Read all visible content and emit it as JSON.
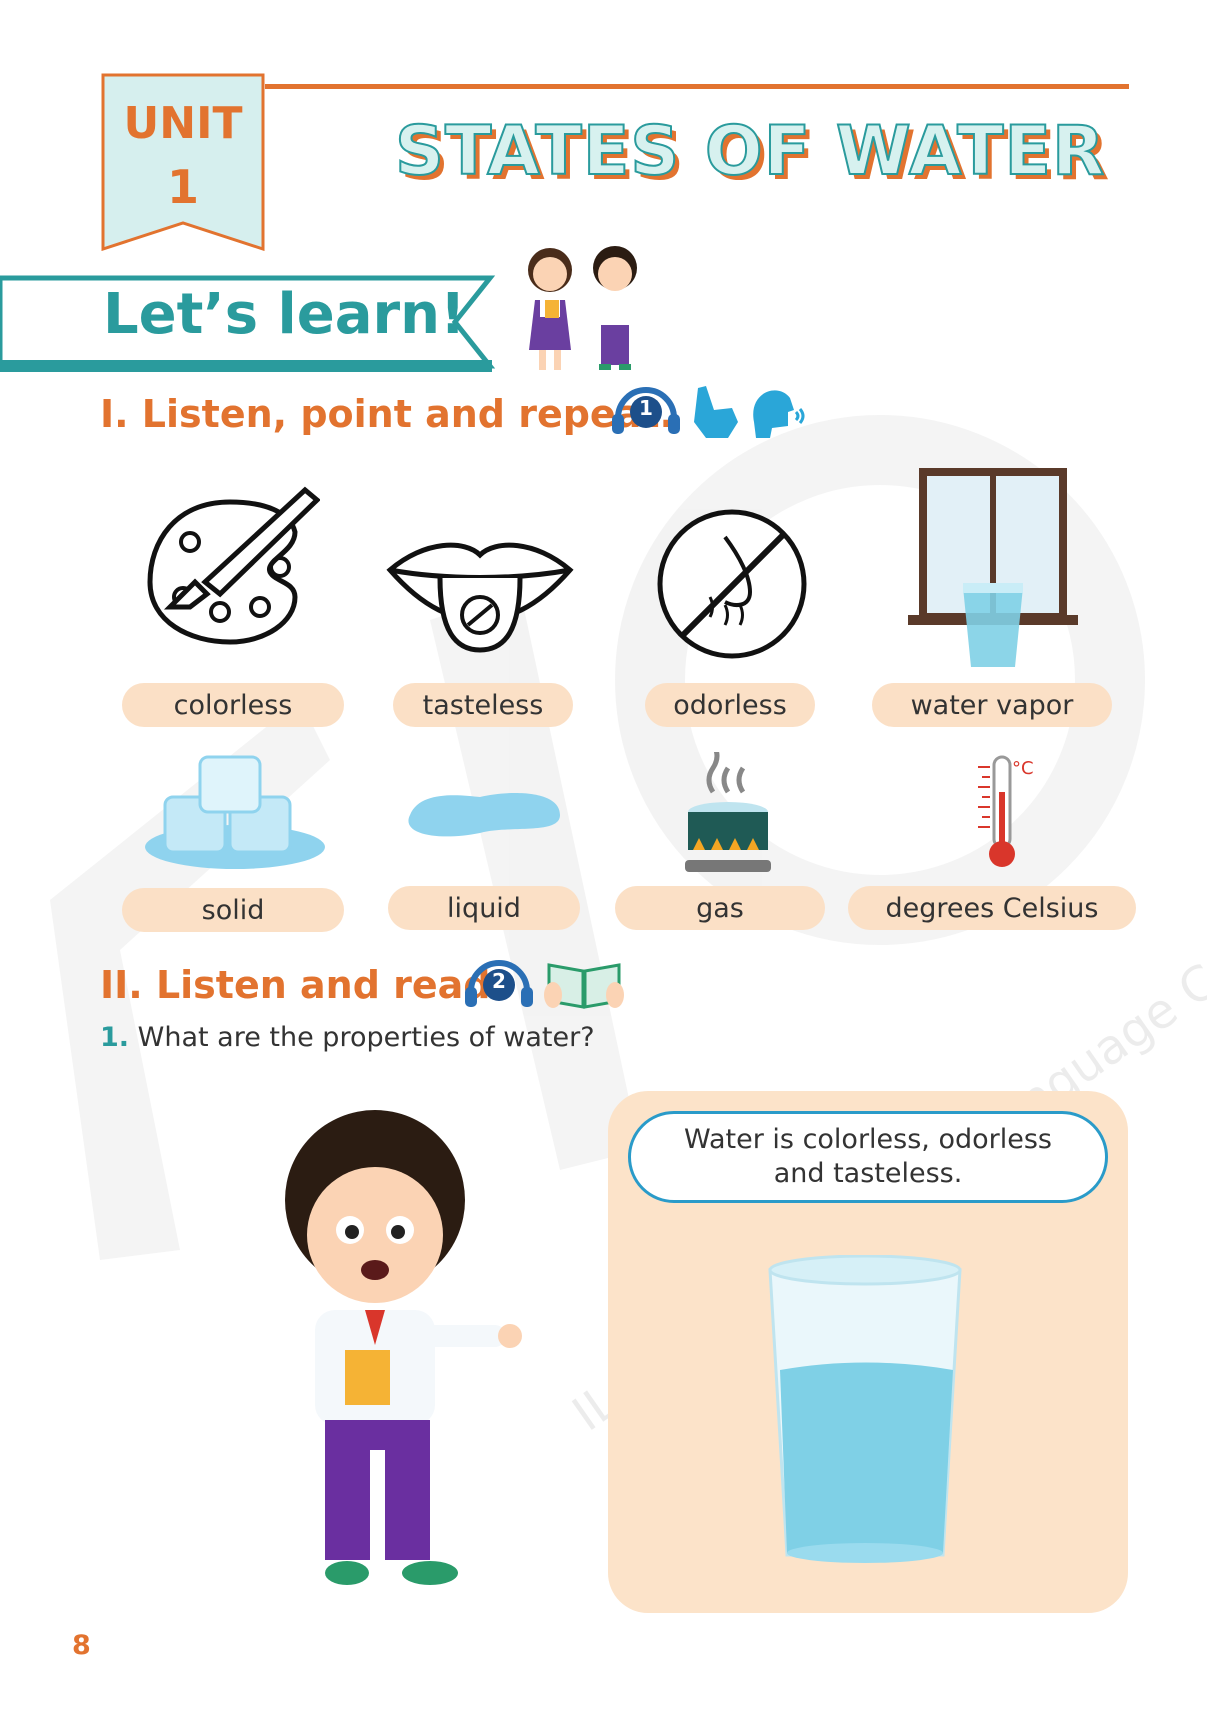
{
  "header": {
    "unit_label": "UNIT",
    "unit_number": "1",
    "title": "STATES OF WATER"
  },
  "banner": {
    "label": "Let’s learn!"
  },
  "section1": {
    "heading": "I. Listen, point and repeat.",
    "track": "1",
    "vocab": [
      {
        "label": "colorless",
        "icon": "palette-icon"
      },
      {
        "label": "tasteless",
        "icon": "tongue-icon"
      },
      {
        "label": "odorless",
        "icon": "no-smell-icon"
      },
      {
        "label": "water vapor",
        "icon": "window-glass-icon"
      },
      {
        "label": "solid",
        "icon": "ice-cubes-icon"
      },
      {
        "label": "liquid",
        "icon": "water-puddle-icon"
      },
      {
        "label": "gas",
        "icon": "boiling-pot-icon"
      },
      {
        "label": "degrees Celsius",
        "icon": "thermometer-icon"
      }
    ],
    "thermo_unit": "°C"
  },
  "section2": {
    "heading": "II. Listen and read.",
    "track": "2",
    "question_number": "1.",
    "question": "What are the properties of water?",
    "answer": "Water is colorless, odorless and tasteless."
  },
  "watermark": "ILA Intercontinental Language Center",
  "page_number": "8",
  "colors": {
    "orange": "#e2732f",
    "teal": "#2a9b9d",
    "peach": "#fbe0c6",
    "water": "#7fd0e6"
  }
}
